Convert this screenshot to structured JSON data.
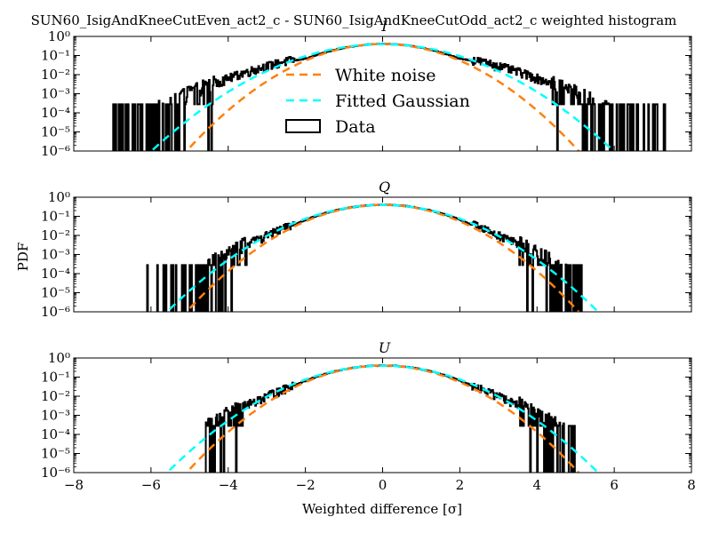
{
  "suptitle": "SUN60_IsigAndKneeCutEven_act2_c - SUN60_IsigAndKneeCutOdd_act2_c weighted histogram",
  "xlabel": "Weighted difference [σ]",
  "ylabel": "PDF",
  "legend": {
    "placement": "upper-center of first panel",
    "entries": [
      {
        "label": "White noise",
        "color": "#ff7f0e",
        "style": "dashed"
      },
      {
        "label": "Fitted Gaussian",
        "color": "#00ffff",
        "style": "dashed"
      },
      {
        "label": "Data",
        "color": "#000000",
        "style": "box"
      }
    ]
  },
  "chart_data": [
    {
      "type": "line",
      "title": "I",
      "xlim": [
        -8,
        8
      ],
      "ylim_log10": [
        -6,
        0
      ],
      "xticks": [
        "−8",
        "−6",
        "−4",
        "−2",
        "0",
        "2",
        "4",
        "6",
        "8"
      ],
      "yticks": [
        "10⁻⁶",
        "10⁻⁵",
        "10⁻⁴",
        "10⁻³",
        "10⁻²",
        "10⁻¹",
        "10⁰"
      ],
      "series": [
        {
          "name": "White noise",
          "kind": "gaussian",
          "sigma": 1.0,
          "amplitude": 0.399
        },
        {
          "name": "Fitted Gaussian",
          "kind": "gaussian",
          "sigma": 1.18,
          "amplitude": 0.39
        },
        {
          "name": "Data",
          "kind": "histogram",
          "core_sigma": 1.05,
          "tail_scale": 1.55,
          "x_min": -7.0,
          "x_max": 7.3,
          "floor": 0.00028
        }
      ]
    },
    {
      "type": "line",
      "title": "Q",
      "xlim": [
        -8,
        8
      ],
      "ylim_log10": [
        -6,
        0
      ],
      "xticks": [
        "−8",
        "−6",
        "−4",
        "−2",
        "0",
        "2",
        "4",
        "6",
        "8"
      ],
      "yticks": [
        "10⁻⁶",
        "10⁻⁵",
        "10⁻⁴",
        "10⁻³",
        "10⁻²",
        "10⁻¹",
        "10⁰"
      ],
      "series": [
        {
          "name": "White noise",
          "kind": "gaussian",
          "sigma": 1.0,
          "amplitude": 0.399
        },
        {
          "name": "Fitted Gaussian",
          "kind": "gaussian",
          "sigma": 1.1,
          "amplitude": 0.39
        },
        {
          "name": "Data",
          "kind": "histogram",
          "core_sigma": 1.05,
          "tail_scale": 1.25,
          "x_min": -6.1,
          "x_max": 5.3,
          "floor": 0.00028
        }
      ]
    },
    {
      "type": "line",
      "title": "U",
      "xlim": [
        -8,
        8
      ],
      "ylim_log10": [
        -6,
        0
      ],
      "xticks": [
        "−8",
        "−6",
        "−4",
        "−2",
        "0",
        "2",
        "4",
        "6",
        "8"
      ],
      "yticks": [
        "10⁻⁶",
        "10⁻⁵",
        "10⁻⁴",
        "10⁻³",
        "10⁻²",
        "10⁻¹",
        "10⁰"
      ],
      "series": [
        {
          "name": "White noise",
          "kind": "gaussian",
          "sigma": 1.0,
          "amplitude": 0.399
        },
        {
          "name": "Fitted Gaussian",
          "kind": "gaussian",
          "sigma": 1.1,
          "amplitude": 0.39
        },
        {
          "name": "Data",
          "kind": "histogram",
          "core_sigma": 1.05,
          "tail_scale": 1.25,
          "x_min": -4.6,
          "x_max": 5.0,
          "floor": 0.00028
        }
      ]
    }
  ]
}
